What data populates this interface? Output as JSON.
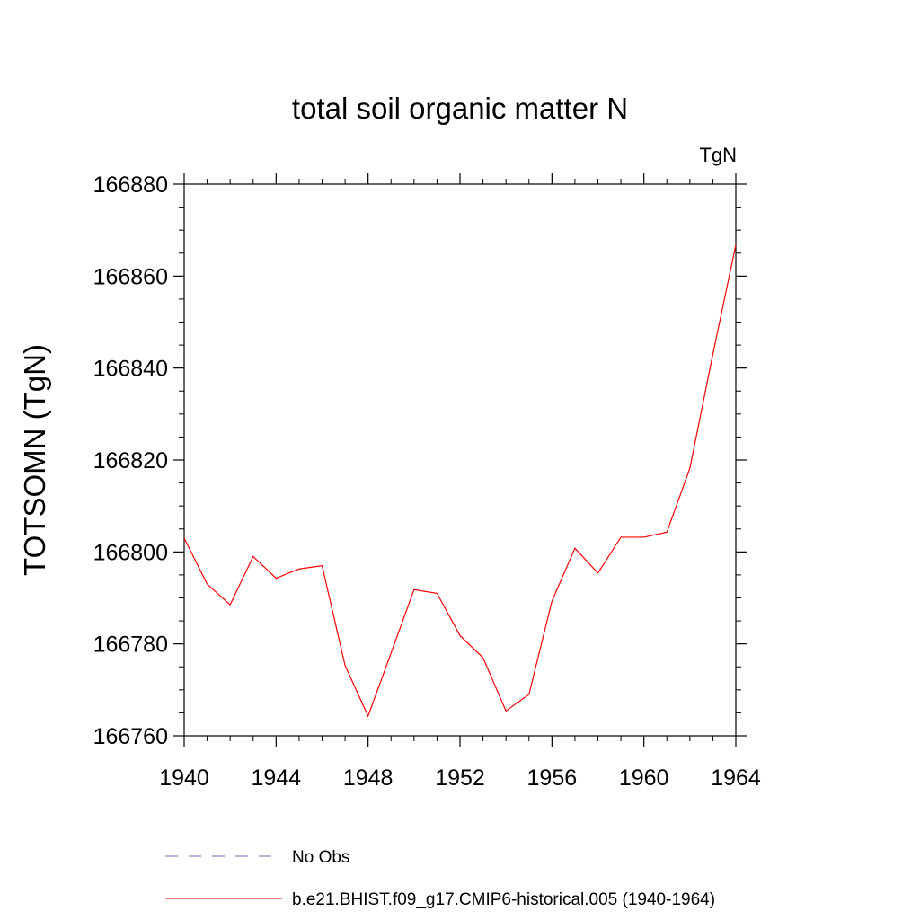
{
  "chart_data": {
    "type": "line",
    "title": "total soil organic matter N",
    "units_label": "TgN",
    "ylabel": "TOTSOMN  (TgN)",
    "xlabel": "",
    "xlim": [
      1940,
      1964
    ],
    "ylim": [
      166760,
      166880
    ],
    "x_ticks": [
      1940,
      1944,
      1948,
      1952,
      1956,
      1960,
      1964
    ],
    "y_ticks": [
      166760,
      166780,
      166800,
      166820,
      166840,
      166860,
      166880
    ],
    "x_tick_labels": [
      "1940",
      "1944",
      "1948",
      "1952",
      "1956",
      "1960",
      "1964"
    ],
    "y_tick_labels": [
      "166760",
      "166780",
      "166800",
      "166820",
      "166840",
      "166860",
      "166880"
    ],
    "grid": false,
    "legend_position": "bottom",
    "series": [
      {
        "name": "No Obs",
        "color": "#6b6bb3",
        "style": "dashed",
        "x": [],
        "values": []
      },
      {
        "name": "b.e21.BHIST.f09_g17.CMIP6-historical.005 (1940-1964)",
        "color": "#ff0000",
        "style": "solid",
        "x": [
          1940,
          1941,
          1942,
          1943,
          1944,
          1945,
          1946,
          1947,
          1948,
          1949,
          1950,
          1951,
          1952,
          1953,
          1954,
          1955,
          1956,
          1957,
          1958,
          1959,
          1960,
          1961,
          1962,
          1963,
          1964
        ],
        "values": [
          166803,
          166793,
          166788.5,
          166799,
          166794.3,
          166796.3,
          166797,
          166775.3,
          166764.3,
          166778,
          166791.8,
          166791,
          166781.8,
          166777,
          166765.4,
          166769,
          166789.3,
          166800.8,
          166795.4,
          166803.2,
          166803.2,
          166804.3,
          166818.2,
          166843,
          166866.8
        ]
      }
    ]
  }
}
